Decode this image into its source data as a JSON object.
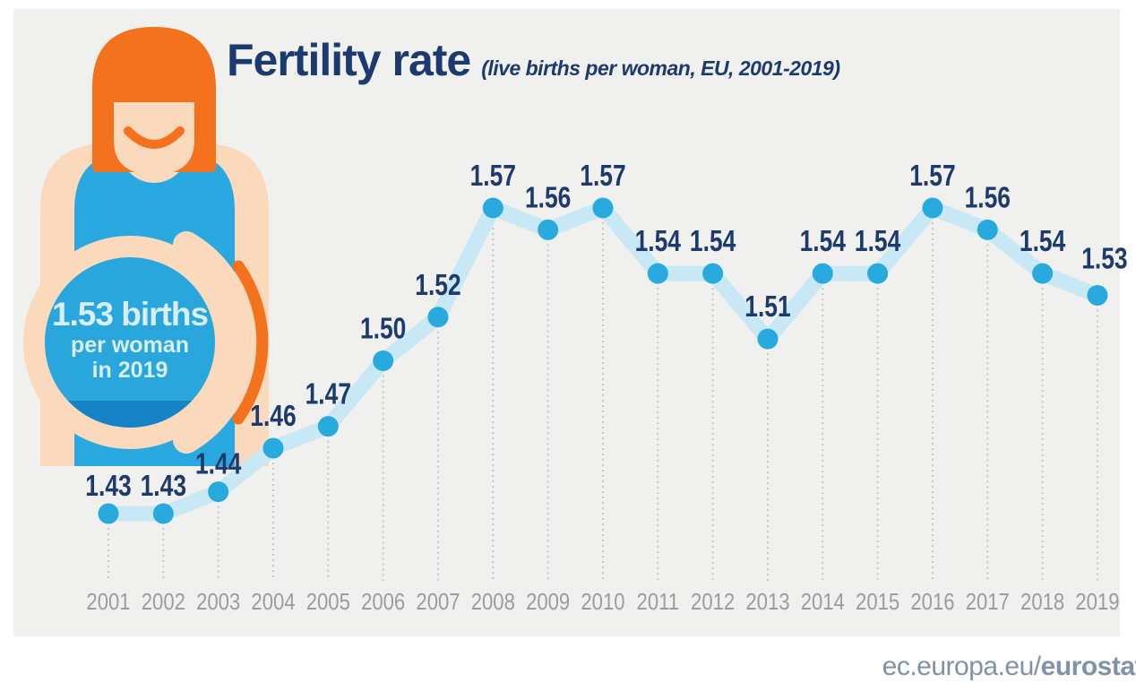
{
  "title": {
    "main": "Fertility rate",
    "subtitle": "(live births per woman, EU, 2001-2019)"
  },
  "callout": {
    "line1": "1.53 births",
    "line2": "per woman",
    "line3": "in 2019"
  },
  "footer": {
    "prefix": "ec.europa.eu/",
    "bold": "eurostat"
  },
  "colors": {
    "navy": "#1c3a6e",
    "dot": "#29aadf",
    "band": "#c9e8f5",
    "grid": "#c6c6c6",
    "year": "#9c9c9c",
    "footer": "#7e93a8",
    "bg_panel": "#f0f0ee",
    "orange": "#f4711d",
    "skin": "#fbd9bc",
    "top_blue": "#2aa9e0",
    "belly": "#29a7dd",
    "belly_dark": "#1583c6",
    "callout_text": "#d8eff9"
  },
  "chart_data": {
    "type": "line",
    "title": "Fertility rate",
    "subtitle": "(live births per woman, EU, 2001-2019)",
    "xlabel": "",
    "ylabel": "live births per woman",
    "x": [
      2001,
      2002,
      2003,
      2004,
      2005,
      2006,
      2007,
      2008,
      2009,
      2010,
      2011,
      2012,
      2013,
      2014,
      2015,
      2016,
      2017,
      2018,
      2019
    ],
    "values": [
      1.43,
      1.43,
      1.44,
      1.46,
      1.47,
      1.5,
      1.52,
      1.57,
      1.56,
      1.57,
      1.54,
      1.54,
      1.51,
      1.54,
      1.54,
      1.57,
      1.56,
      1.54,
      1.53
    ],
    "ylim": [
      1.43,
      1.57
    ],
    "grid": "vertical-dotted",
    "legend": "none",
    "point_labels_shown": true,
    "label_offsets": {
      "0": [
        0,
        -20
      ],
      "1": [
        0,
        -20
      ],
      "2": [
        0,
        -20
      ],
      "18": [
        8,
        -30
      ]
    }
  }
}
